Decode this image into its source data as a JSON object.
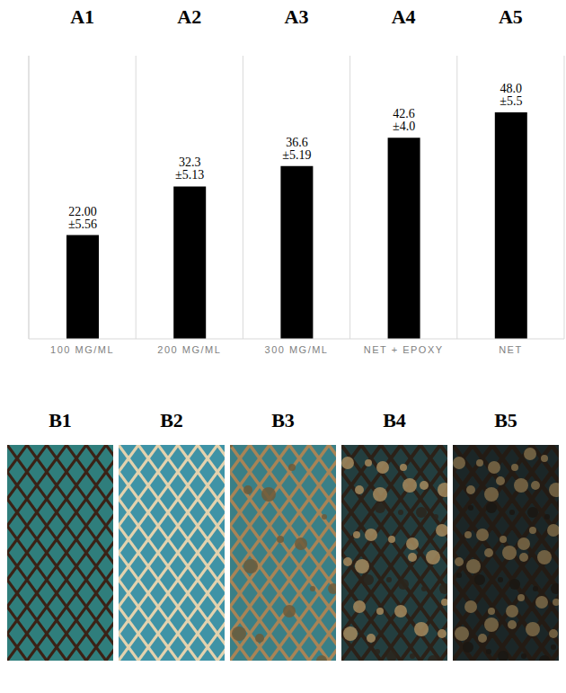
{
  "chart_data": {
    "type": "bar",
    "panel_labels": [
      "A1",
      "A2",
      "A3",
      "A4",
      "A5"
    ],
    "categories": [
      "100 MG/ML",
      "200 MG/ML",
      "300 MG/ML",
      "NET + EPOXY",
      "NET"
    ],
    "values": [
      22.0,
      32.3,
      36.6,
      42.6,
      48.0
    ],
    "value_labels": [
      "22.00 ±5.56",
      "32.3 ±5.13",
      "36.6 ±5.19",
      "42.6 ±4.0",
      "48.0 ±5.5"
    ],
    "data_labels": true,
    "color": "#000000",
    "ylim": [
      0,
      60
    ],
    "grid": true,
    "tick_labels": "x"
  },
  "photos": {
    "labels": [
      "B1",
      "B2",
      "B3",
      "B4",
      "B5"
    ]
  }
}
